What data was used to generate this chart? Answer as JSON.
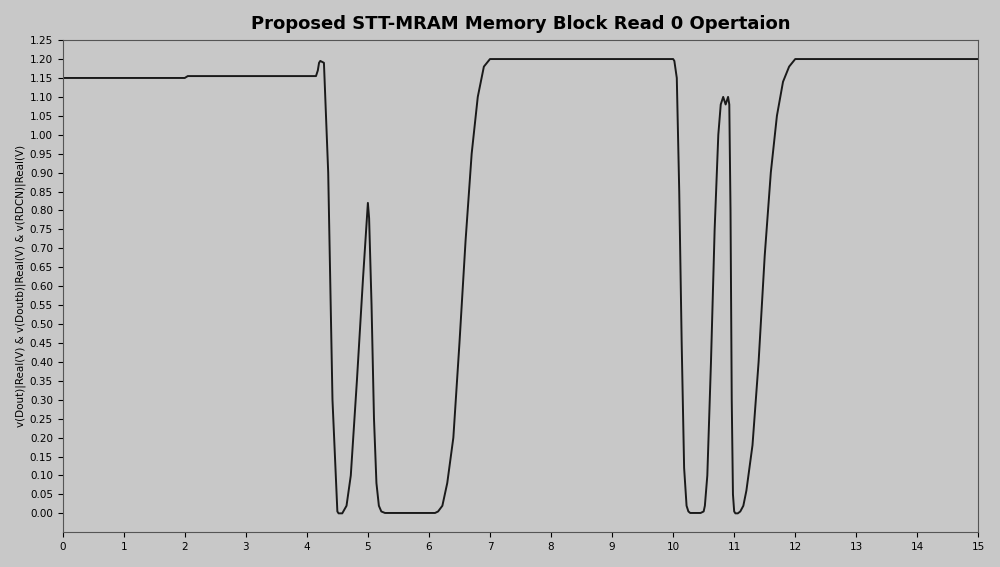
{
  "title": "Proposed STT-MRAM Memory Block Read 0 Opertaion",
  "ylabel": "v(Dout)|Real(V) & v(Doutb)|Real(V) & v(RDCN)|Real(V)",
  "xlabel": "",
  "xlim": [
    0,
    15
  ],
  "ylim": [
    -0.05,
    1.25
  ],
  "yticks": [
    0.0,
    0.05,
    0.1,
    0.15,
    0.2,
    0.25,
    0.3,
    0.35,
    0.4,
    0.45,
    0.5,
    0.55,
    0.6,
    0.65,
    0.7,
    0.75,
    0.8,
    0.85,
    0.9,
    0.95,
    1.0,
    1.05,
    1.1,
    1.15,
    1.2,
    1.25
  ],
  "xticks": [
    0,
    1,
    2,
    3,
    4,
    5,
    6,
    7,
    8,
    9,
    10,
    11,
    12,
    13,
    14,
    15
  ],
  "bg_color": "#c8c8c8",
  "line_color": "#1a1a1a",
  "title_fontsize": 13,
  "label_fontsize": 7.5,
  "waveform_x": [
    0.0,
    2.0,
    2.05,
    4.15,
    4.18,
    4.2,
    4.22,
    4.28,
    4.35,
    4.42,
    4.5,
    4.52,
    4.58,
    4.65,
    4.72,
    4.82,
    4.92,
    5.0,
    5.02,
    5.06,
    5.1,
    5.14,
    5.18,
    5.22,
    5.28,
    5.5,
    5.8,
    6.0,
    6.1,
    6.15,
    6.22,
    6.3,
    6.4,
    6.5,
    6.6,
    6.7,
    6.8,
    6.9,
    7.0,
    9.0,
    9.5,
    10.0,
    10.02,
    10.06,
    10.1,
    10.14,
    10.18,
    10.22,
    10.25,
    10.28,
    10.32,
    10.36,
    10.4,
    10.45,
    10.5,
    10.52,
    10.56,
    10.62,
    10.68,
    10.74,
    10.78,
    10.82,
    10.84,
    10.86,
    10.88,
    10.9,
    10.92,
    10.94,
    10.96,
    10.98,
    11.0,
    11.02,
    11.06,
    11.1,
    11.15,
    11.2,
    11.3,
    11.4,
    11.5,
    11.6,
    11.7,
    11.8,
    11.9,
    12.0,
    13.0,
    15.0
  ],
  "waveform_y": [
    1.15,
    1.15,
    1.155,
    1.155,
    1.17,
    1.19,
    1.195,
    1.19,
    0.9,
    0.3,
    0.005,
    0.0,
    0.0,
    0.02,
    0.1,
    0.35,
    0.62,
    0.82,
    0.78,
    0.55,
    0.25,
    0.08,
    0.02,
    0.005,
    0.001,
    0.001,
    0.001,
    0.001,
    0.001,
    0.005,
    0.02,
    0.08,
    0.2,
    0.45,
    0.72,
    0.95,
    1.1,
    1.18,
    1.2,
    1.2,
    1.2,
    1.2,
    1.195,
    1.15,
    0.85,
    0.45,
    0.12,
    0.02,
    0.005,
    0.001,
    0.001,
    0.001,
    0.001,
    0.001,
    0.005,
    0.02,
    0.1,
    0.4,
    0.75,
    1.0,
    1.08,
    1.1,
    1.09,
    1.08,
    1.09,
    1.1,
    1.08,
    0.8,
    0.3,
    0.05,
    0.005,
    0.0,
    0.0,
    0.005,
    0.02,
    0.06,
    0.18,
    0.4,
    0.68,
    0.9,
    1.05,
    1.14,
    1.18,
    1.2,
    1.2,
    1.2
  ]
}
